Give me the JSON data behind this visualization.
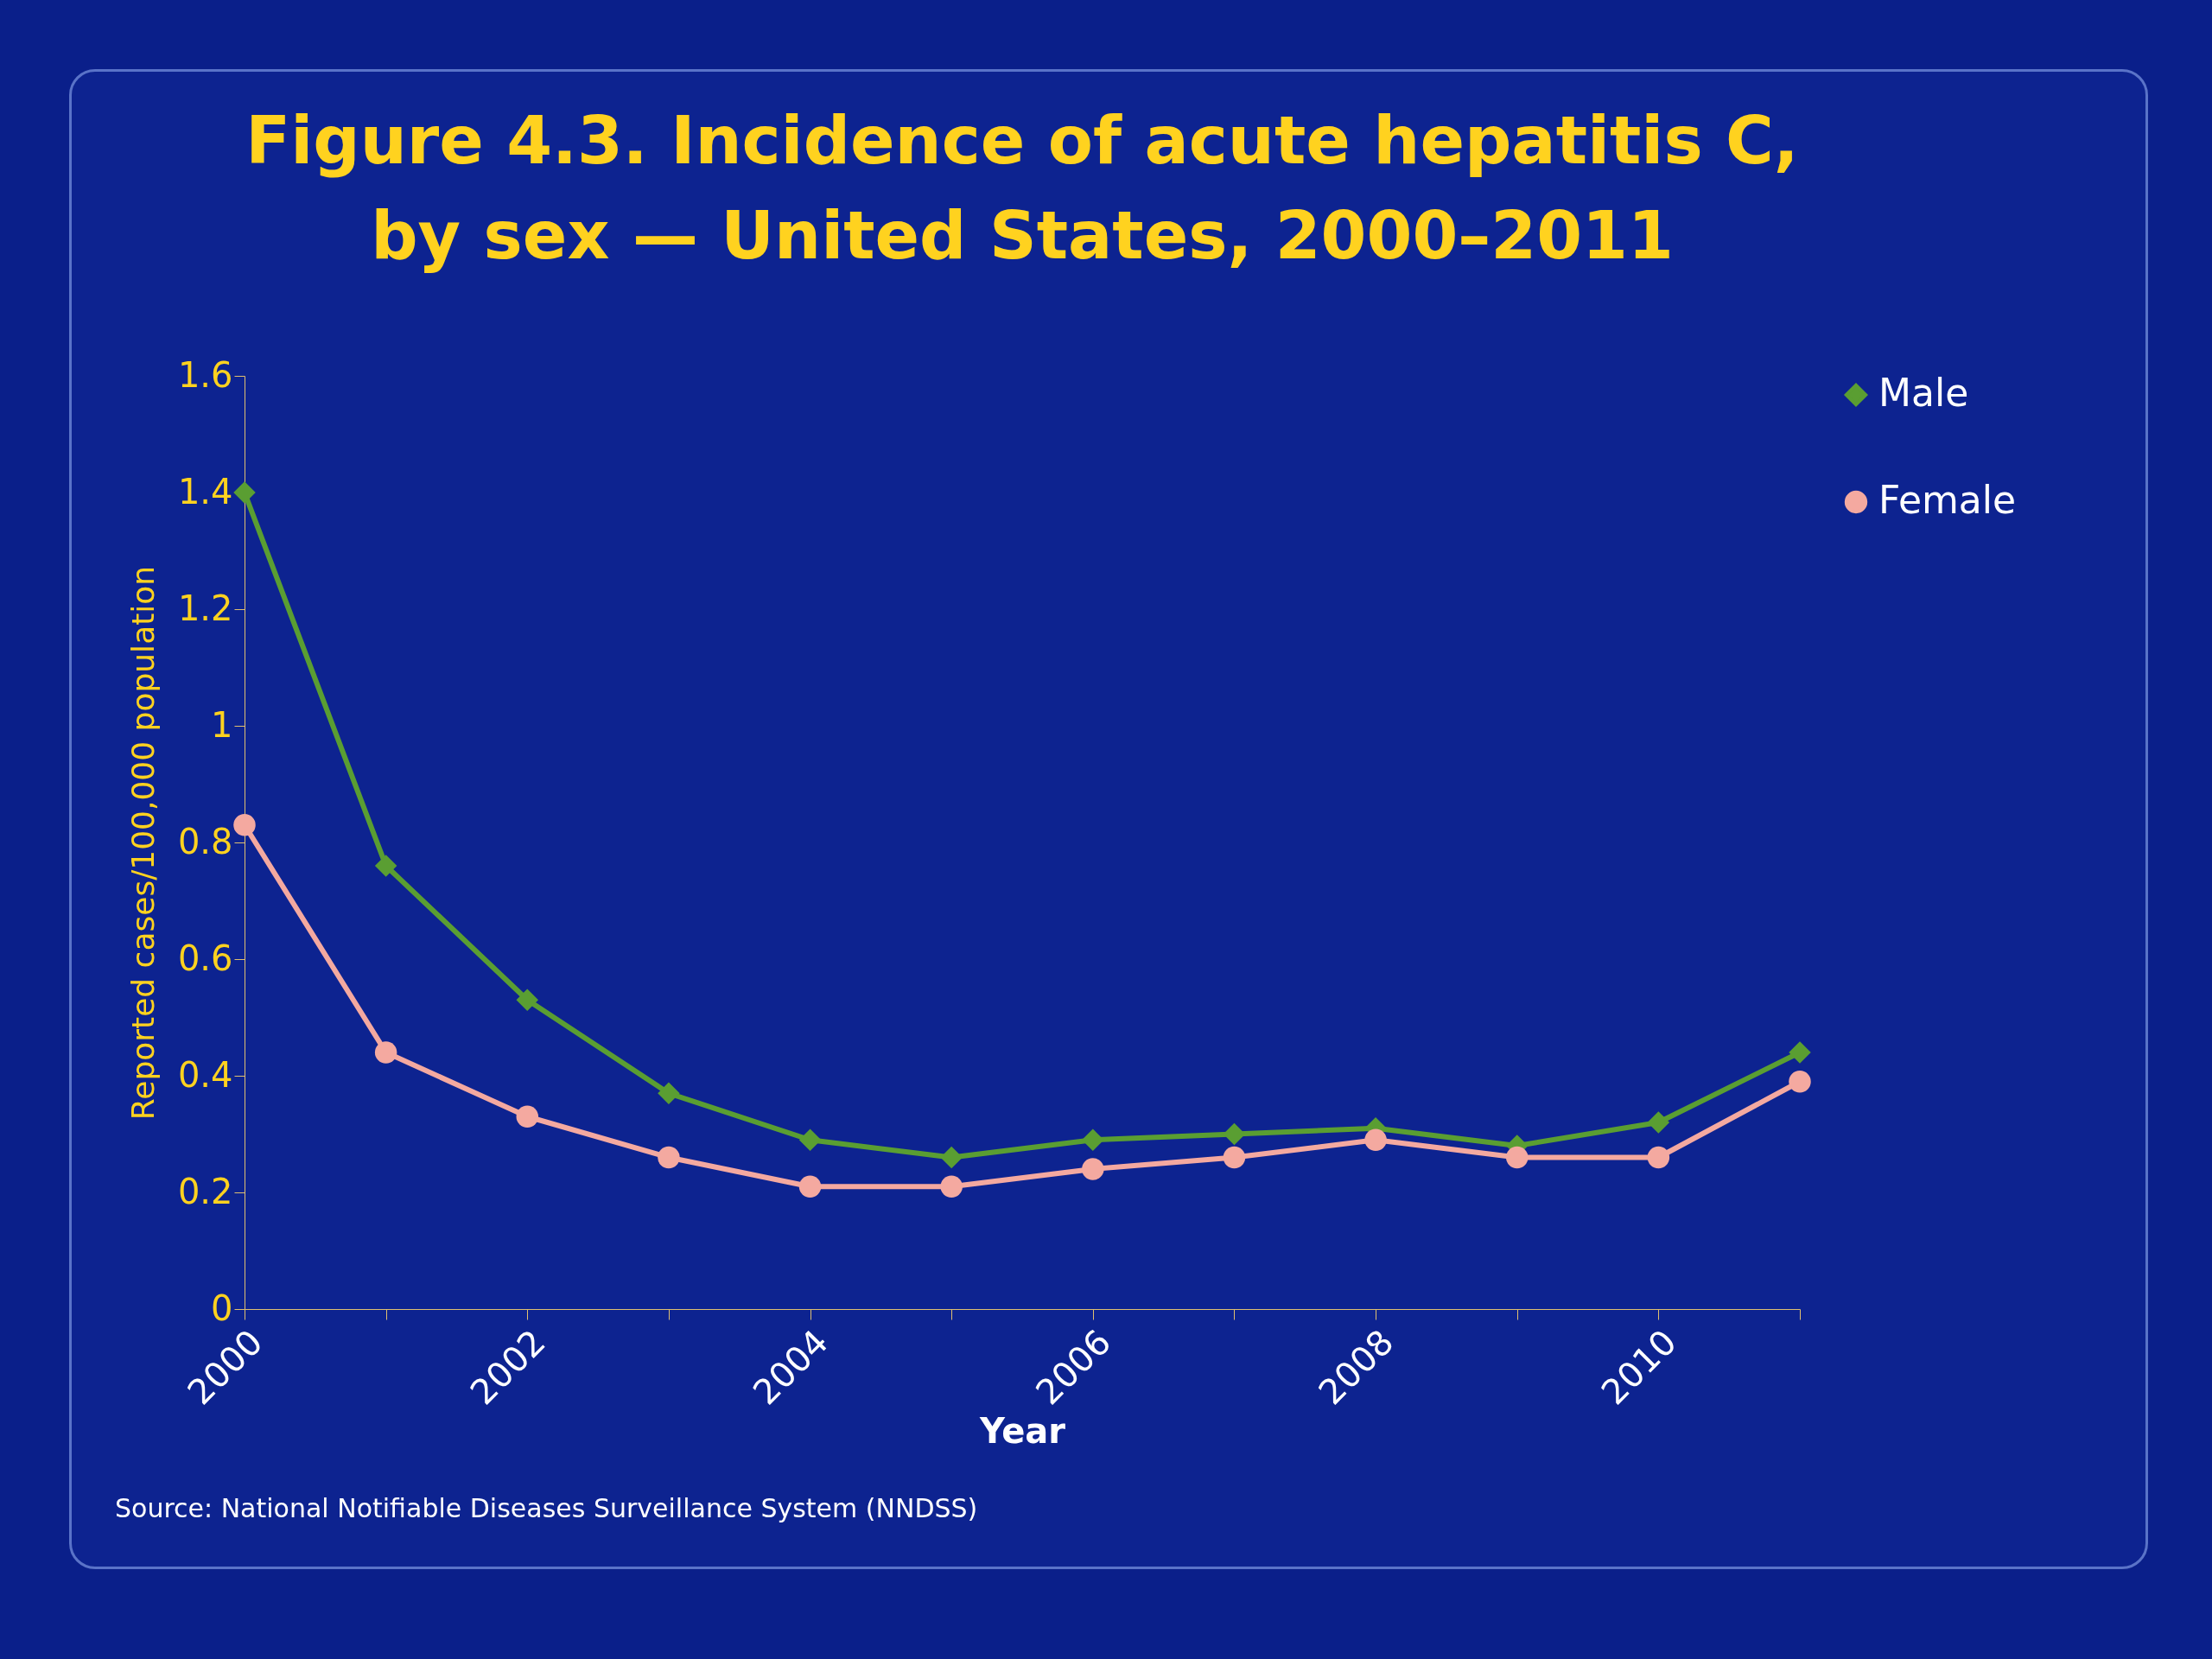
{
  "chart_data": {
    "type": "line",
    "title": "Figure 4.3. Incidence of acute hepatitis C, by sex — United States, 2000–2011",
    "xlabel": "Year",
    "ylabel": "Reported cases/100,000 population",
    "x": [
      2000,
      2001,
      2002,
      2003,
      2004,
      2005,
      2006,
      2007,
      2008,
      2009,
      2010,
      2011
    ],
    "series": [
      {
        "name": "Male",
        "color": "#5a9e32",
        "marker": "diamond",
        "values": [
          1.4,
          0.76,
          0.53,
          0.37,
          0.29,
          0.26,
          0.29,
          0.3,
          0.31,
          0.28,
          0.32,
          0.44
        ]
      },
      {
        "name": "Female",
        "color": "#f4a9a0",
        "marker": "circle",
        "values": [
          0.83,
          0.44,
          0.33,
          0.26,
          0.21,
          0.21,
          0.24,
          0.26,
          0.29,
          0.26,
          0.26,
          0.39
        ]
      }
    ],
    "xlim": [
      2000,
      2011
    ],
    "xticks": [
      2000,
      {
        "value": 2001,
        "label": null
      },
      2002,
      {
        "value": 2003,
        "label": null
      },
      2004,
      {
        "value": 2005,
        "label": null
      },
      2006,
      {
        "value": 2007,
        "label": null
      },
      2008,
      {
        "value": 2009,
        "label": null
      },
      2010,
      {
        "value": 2011,
        "label": null
      }
    ],
    "ylim": [
      0,
      1.6
    ],
    "yticks": [
      0,
      0.2,
      0.4,
      0.6,
      0.8,
      1,
      1.2,
      1.4,
      1.6
    ],
    "grid": false,
    "legend": "right",
    "line_style": "solid",
    "annotations": [
      "Source: National Notifiable Diseases Surveillance System (NNDSS)"
    ]
  }
}
